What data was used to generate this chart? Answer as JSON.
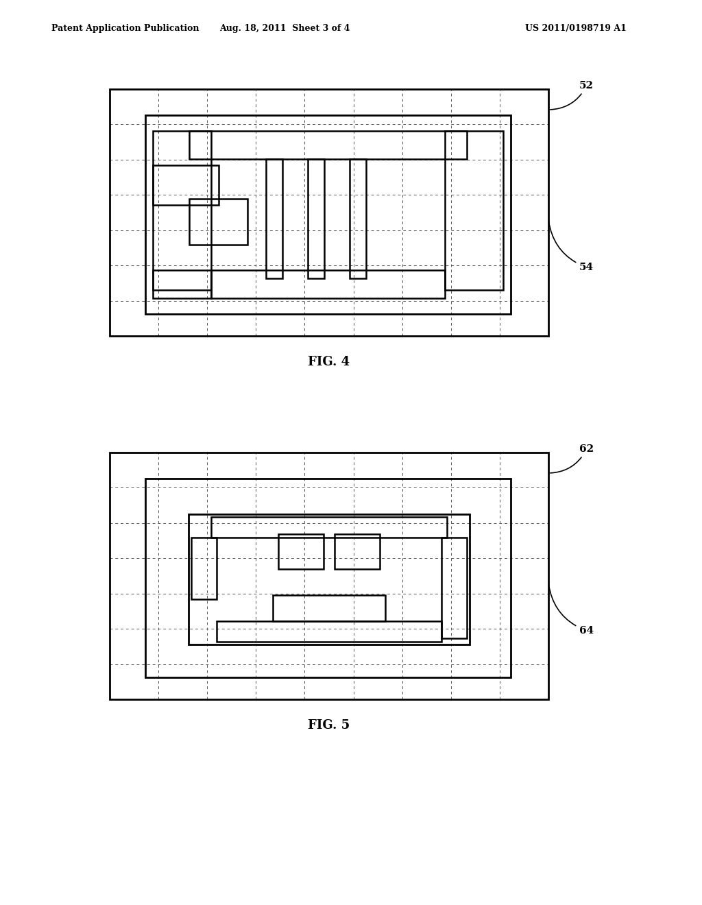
{
  "bg_color": "#ffffff",
  "header_left": "Patent Application Publication",
  "header_mid": "Aug. 18, 2011  Sheet 3 of 4",
  "header_right": "US 2011/0198719 A1",
  "fig4_label": "FIG. 4",
  "fig5_label": "FIG. 5",
  "label_52": "52",
  "label_54": "54",
  "label_62": "62",
  "label_64": "64",
  "fig4": {
    "outer": [
      160,
      170,
      650,
      390
    ],
    "grid_nx": 9,
    "grid_ny": 7
  },
  "fig5": {
    "outer": [
      160,
      730,
      650,
      390
    ],
    "grid_nx": 9,
    "grid_ny": 7
  }
}
